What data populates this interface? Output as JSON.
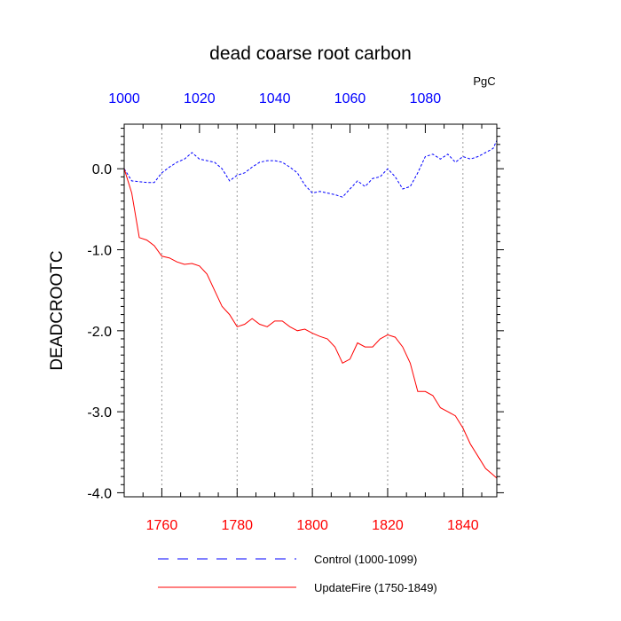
{
  "chart_data": {
    "type": "line",
    "title": "dead coarse root carbon",
    "units": "PgC",
    "ylabel": "DEADCROOTC",
    "ylim": [
      -4.05,
      0.55
    ],
    "yticks": [
      0.0,
      -1.0,
      -2.0,
      -3.0,
      -4.0
    ],
    "ytick_labels": [
      "0.0",
      "-1.0",
      "-2.0",
      "-3.0",
      "-4.0"
    ],
    "x_bottom": {
      "range": [
        1750,
        1849
      ],
      "ticks": [
        1760,
        1780,
        1800,
        1820,
        1840
      ],
      "tick_labels": [
        "1760",
        "1780",
        "1800",
        "1820",
        "1840"
      ],
      "color": "#ff0000"
    },
    "x_top": {
      "range": [
        1000,
        1099
      ],
      "ticks": [
        1000,
        1020,
        1040,
        1060,
        1080
      ],
      "tick_labels": [
        "1000",
        "1020",
        "1040",
        "1060",
        "1080"
      ],
      "color": "#0000ff"
    },
    "grid": "vertical dotted",
    "legend_position": "bottom",
    "series": [
      {
        "name": "Control (1000-1099)",
        "axis": "top",
        "color": "#0000ff",
        "style": "dashed",
        "x": [
          1000,
          1002,
          1004,
          1006,
          1008,
          1010,
          1012,
          1014,
          1016,
          1018,
          1020,
          1022,
          1024,
          1026,
          1028,
          1030,
          1032,
          1034,
          1036,
          1038,
          1040,
          1042,
          1044,
          1046,
          1048,
          1050,
          1052,
          1054,
          1056,
          1058,
          1060,
          1062,
          1064,
          1066,
          1068,
          1070,
          1072,
          1074,
          1076,
          1078,
          1080,
          1082,
          1084,
          1086,
          1088,
          1090,
          1092,
          1094,
          1096,
          1098,
          1099
        ],
        "values": [
          0.0,
          -0.15,
          -0.16,
          -0.17,
          -0.17,
          -0.05,
          0.02,
          0.08,
          0.12,
          0.2,
          0.12,
          0.1,
          0.08,
          0.0,
          -0.15,
          -0.08,
          -0.05,
          0.02,
          0.08,
          0.1,
          0.1,
          0.08,
          0.02,
          -0.05,
          -0.2,
          -0.3,
          -0.28,
          -0.3,
          -0.32,
          -0.35,
          -0.25,
          -0.15,
          -0.22,
          -0.12,
          -0.1,
          0.0,
          -0.1,
          -0.25,
          -0.22,
          -0.05,
          0.15,
          0.18,
          0.12,
          0.18,
          0.08,
          0.15,
          0.12,
          0.15,
          0.2,
          0.25,
          0.35
        ]
      },
      {
        "name": "UpdateFire (1750-1849)",
        "axis": "bottom",
        "color": "#ff0000",
        "style": "solid",
        "x": [
          1750,
          1752,
          1754,
          1756,
          1758,
          1760,
          1762,
          1764,
          1766,
          1768,
          1770,
          1772,
          1774,
          1776,
          1778,
          1780,
          1782,
          1784,
          1786,
          1788,
          1790,
          1792,
          1794,
          1796,
          1798,
          1800,
          1802,
          1804,
          1806,
          1808,
          1810,
          1812,
          1814,
          1816,
          1818,
          1820,
          1822,
          1824,
          1826,
          1828,
          1830,
          1832,
          1834,
          1836,
          1838,
          1840,
          1842,
          1844,
          1846,
          1848,
          1849
        ],
        "values": [
          0.0,
          -0.3,
          -0.85,
          -0.88,
          -0.95,
          -1.08,
          -1.1,
          -1.15,
          -1.18,
          -1.17,
          -1.2,
          -1.3,
          -1.5,
          -1.7,
          -1.8,
          -1.95,
          -1.92,
          -1.85,
          -1.92,
          -1.95,
          -1.88,
          -1.88,
          -1.95,
          -2.0,
          -1.98,
          -2.03,
          -2.07,
          -2.1,
          -2.2,
          -2.4,
          -2.35,
          -2.15,
          -2.2,
          -2.2,
          -2.1,
          -2.05,
          -2.08,
          -2.2,
          -2.4,
          -2.75,
          -2.75,
          -2.8,
          -2.95,
          -3.0,
          -3.05,
          -3.2,
          -3.4,
          -3.55,
          -3.7,
          -3.78,
          -3.82
        ]
      }
    ]
  }
}
